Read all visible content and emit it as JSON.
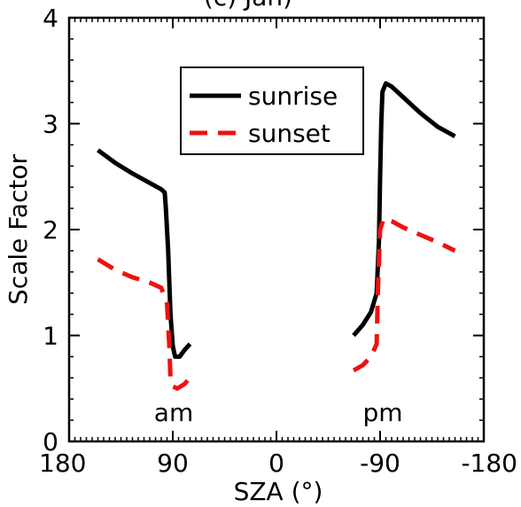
{
  "chart_data": {
    "type": "line",
    "title": "(c) Jan)",
    "xlabel": "SZA (°)",
    "ylabel": "Scale Factor",
    "xlim": [
      180,
      -180
    ],
    "ylim": [
      0,
      4
    ],
    "xticks": [
      180,
      90,
      0,
      -90,
      -180
    ],
    "xtick_labels": [
      "180",
      "90",
      "0",
      "-90",
      "-180"
    ],
    "yticks": [
      0,
      1,
      2,
      3,
      4
    ],
    "ytick_labels": [
      "0",
      "1",
      "2",
      "3",
      "4"
    ],
    "annotations": [
      {
        "text": "am",
        "x": 90,
        "y": 0.3
      },
      {
        "text": "pm",
        "x": -90,
        "y": 0.3
      }
    ],
    "legend_position": "top-right",
    "series": [
      {
        "name": "sunrise",
        "color": "#000000",
        "style": "solid",
        "segments": [
          [
            [
              155,
              2.75
            ],
            [
              140,
              2.63
            ],
            [
              125,
              2.53
            ],
            [
              110,
              2.44
            ],
            [
              100,
              2.38
            ],
            [
              97,
              2.35
            ],
            [
              96,
              2.2
            ],
            [
              94,
              1.8
            ],
            [
              92,
              1.2
            ],
            [
              90,
              0.9
            ],
            [
              88,
              0.8
            ],
            [
              84,
              0.8
            ],
            [
              80,
              0.86
            ],
            [
              75,
              0.92
            ]
          ],
          [
            [
              -67,
              1.0
            ],
            [
              -75,
              1.1
            ],
            [
              -82,
              1.22
            ],
            [
              -87,
              1.4
            ],
            [
              -89,
              1.9
            ],
            [
              -90,
              2.5
            ],
            [
              -91,
              3.0
            ],
            [
              -92,
              3.3
            ],
            [
              -95,
              3.38
            ],
            [
              -100,
              3.35
            ],
            [
              -110,
              3.25
            ],
            [
              -125,
              3.1
            ],
            [
              -140,
              2.97
            ],
            [
              -155,
              2.88
            ]
          ]
        ]
      },
      {
        "name": "sunset",
        "color": "#ee1111",
        "style": "dashed",
        "segments": [
          [
            [
              155,
              1.72
            ],
            [
              140,
              1.62
            ],
            [
              125,
              1.55
            ],
            [
              110,
              1.5
            ],
            [
              100,
              1.45
            ],
            [
              95,
              1.3
            ],
            [
              93,
              0.9
            ],
            [
              92,
              0.6
            ],
            [
              90,
              0.52
            ],
            [
              86,
              0.5
            ],
            [
              80,
              0.54
            ],
            [
              75,
              0.6
            ]
          ],
          [
            [
              -67,
              0.67
            ],
            [
              -75,
              0.72
            ],
            [
              -82,
              0.8
            ],
            [
              -87,
              0.92
            ],
            [
              -88,
              1.4
            ],
            [
              -90,
              2.0
            ],
            [
              -93,
              2.1
            ],
            [
              -100,
              2.08
            ],
            [
              -110,
              2.02
            ],
            [
              -125,
              1.95
            ],
            [
              -140,
              1.88
            ],
            [
              -155,
              1.8
            ]
          ]
        ]
      }
    ]
  }
}
